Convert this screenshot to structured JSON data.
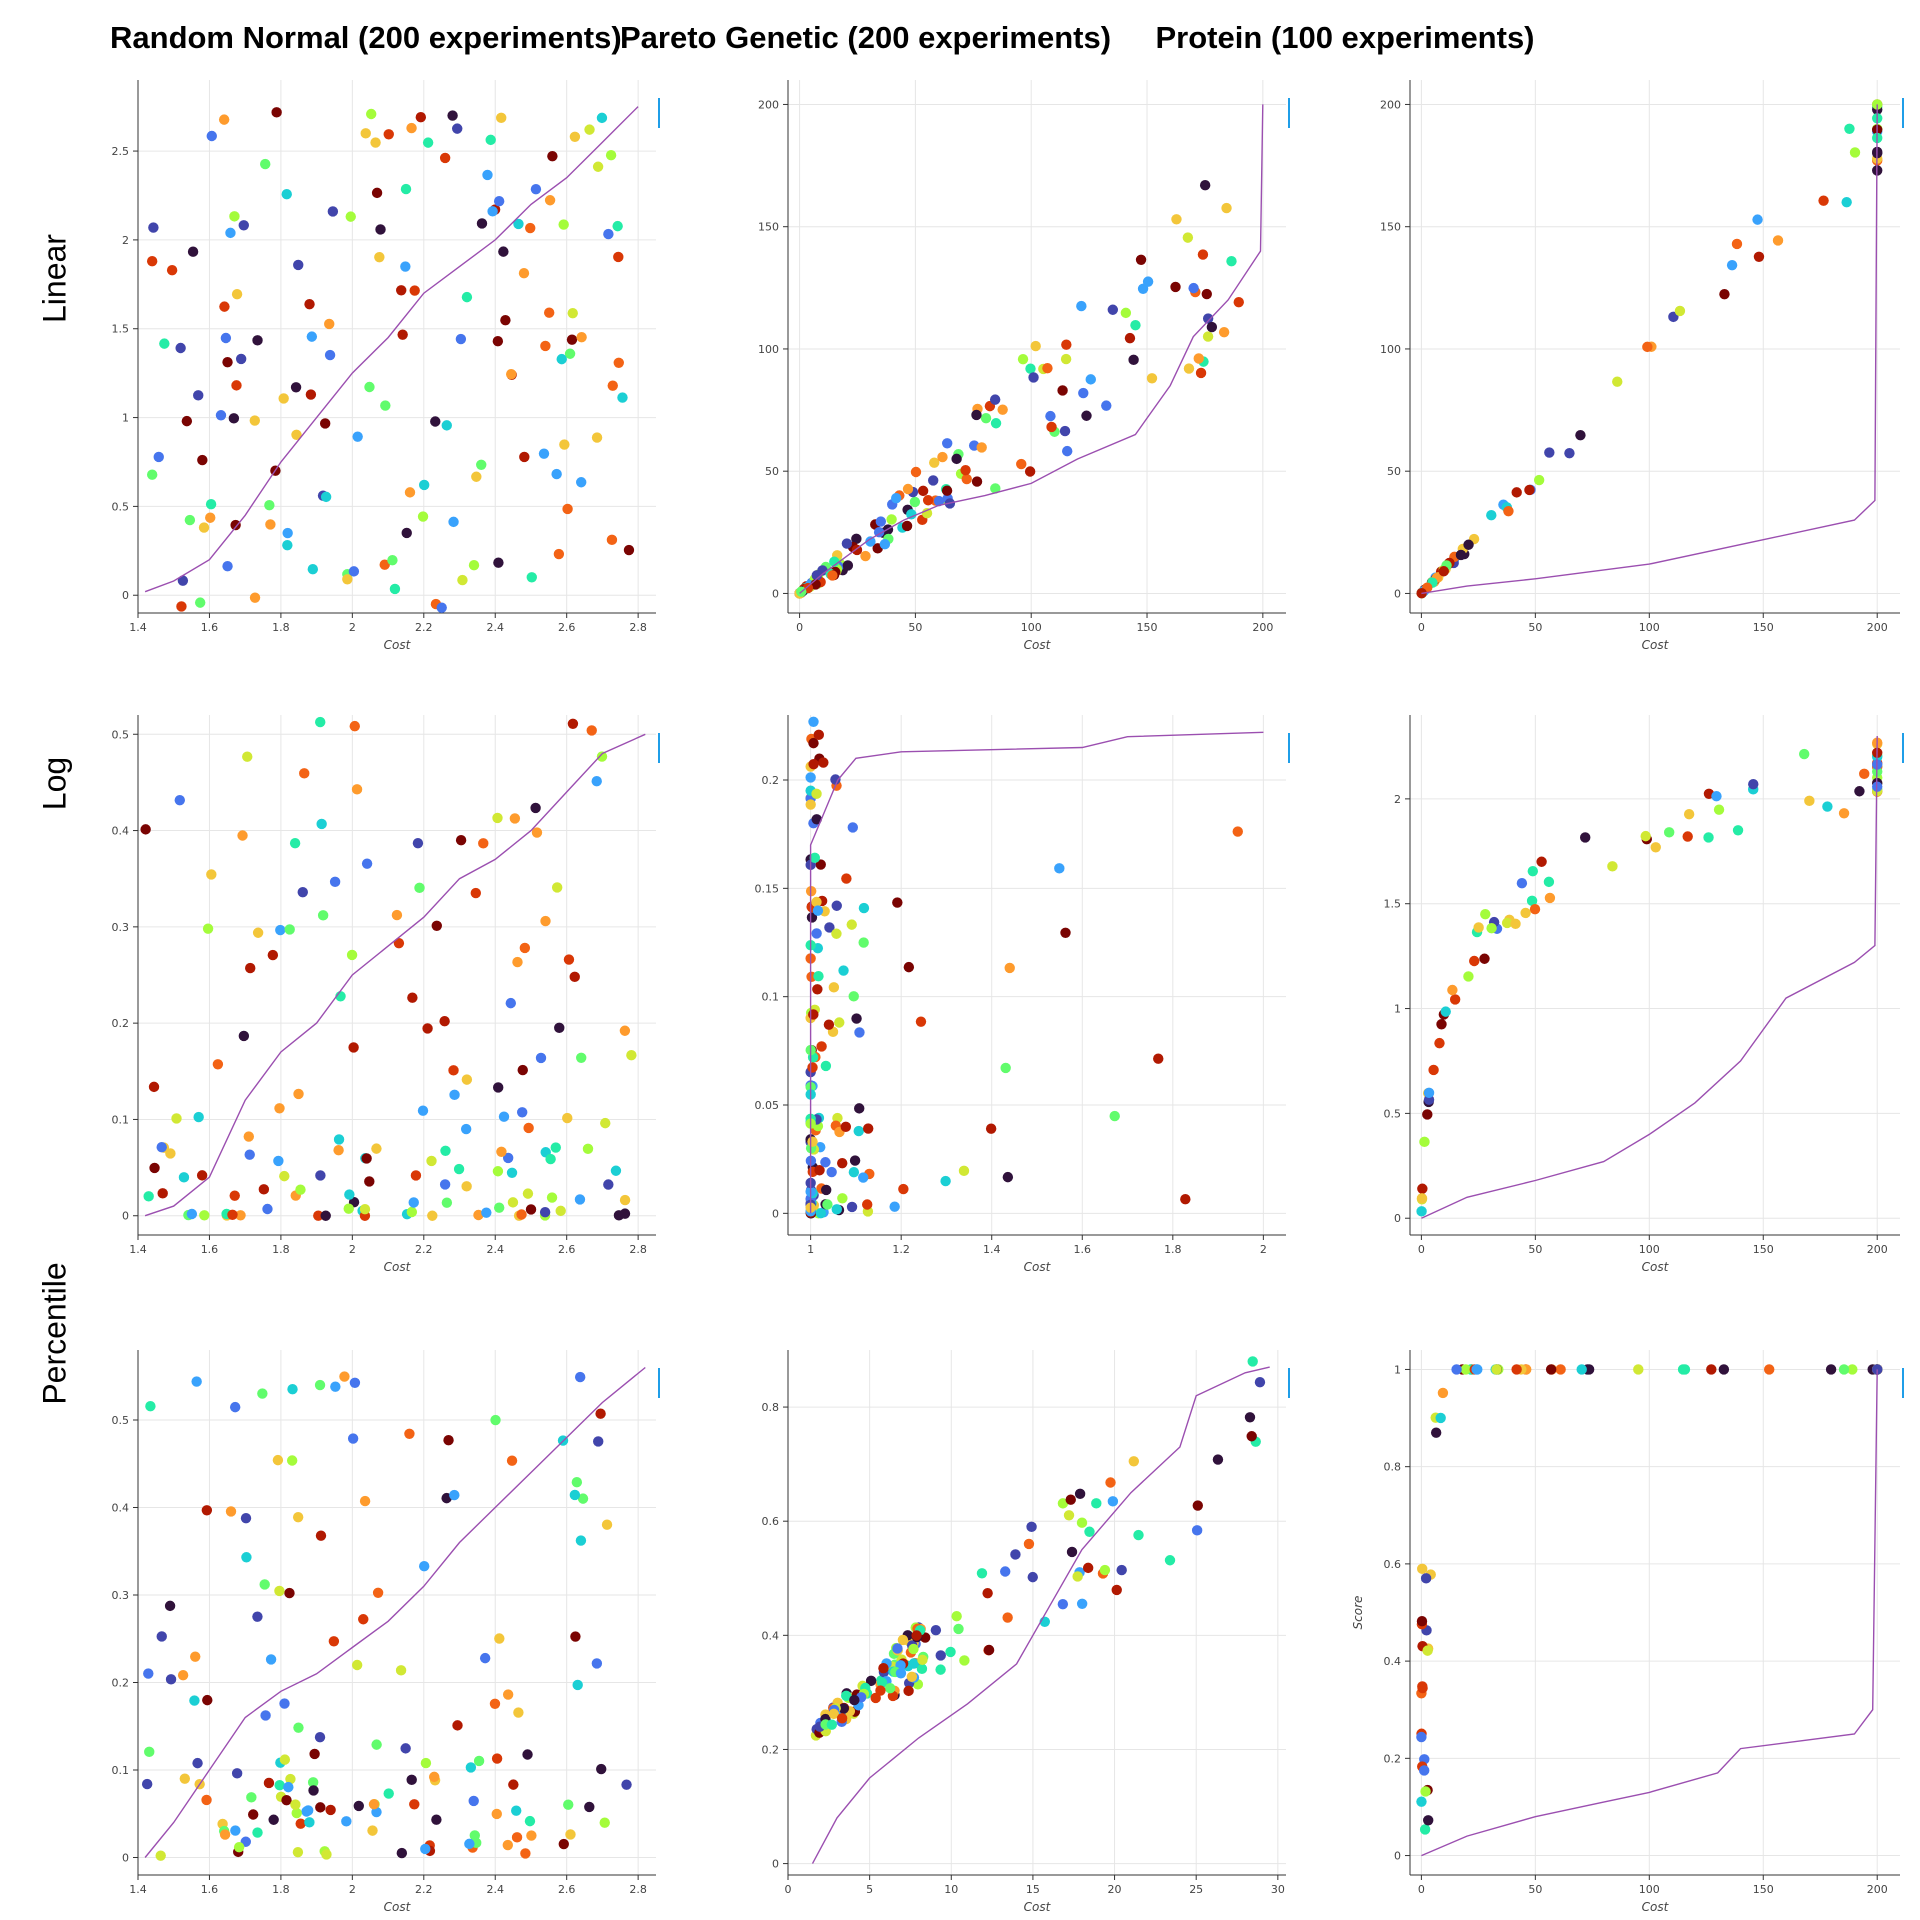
{
  "column_titles": [
    "Random Normal (200 experiments)",
    "Pareto Genetic (200 experiments)",
    "Protein (100 experiments)"
  ],
  "row_titles": [
    "Linear",
    "Log",
    "Percentile"
  ],
  "colors": {
    "frontier_line": "#9b4fb0",
    "accent_marker": "#1f9ee8",
    "grid": "#e6e6e6",
    "axis": "#333333"
  },
  "chart_data": [
    {
      "type": "scatter",
      "panel": "random-normal-linear",
      "xlabel": "Cost",
      "ylabel": "",
      "xlim": [
        1.4,
        2.85
      ],
      "ylim": [
        -0.1,
        2.9
      ],
      "xticks": [
        1.4,
        1.6,
        1.8,
        2,
        2.2,
        2.4,
        2.6,
        2.8
      ],
      "xticklabels": [
        "1.4",
        "1.6",
        "1.8",
        "2",
        "2.2",
        "2.4",
        "2.6",
        "2.8"
      ],
      "yticks": [
        0,
        0.5,
        1,
        1.5,
        2,
        2.5
      ],
      "yticklabels": [
        "0",
        "0.5",
        "1",
        "1.5",
        "2",
        "2.5"
      ],
      "grid": true,
      "point_count": 200,
      "x_distribution": "uniform-random",
      "y_distribution": "uniform-random",
      "frontier": [
        [
          1.42,
          0.02
        ],
        [
          1.5,
          0.08
        ],
        [
          1.6,
          0.2
        ],
        [
          1.7,
          0.45
        ],
        [
          1.8,
          0.75
        ],
        [
          1.9,
          1.0
        ],
        [
          2.0,
          1.25
        ],
        [
          2.1,
          1.45
        ],
        [
          2.2,
          1.7
        ],
        [
          2.3,
          1.85
        ],
        [
          2.4,
          2.0
        ],
        [
          2.5,
          2.2
        ],
        [
          2.6,
          2.35
        ],
        [
          2.7,
          2.55
        ],
        [
          2.8,
          2.75
        ]
      ]
    },
    {
      "type": "scatter",
      "panel": "pareto-genetic-linear",
      "xlabel": "Cost",
      "ylabel": "",
      "xlim": [
        -5,
        210
      ],
      "ylim": [
        -8,
        210
      ],
      "xticks": [
        0,
        50,
        100,
        150,
        200
      ],
      "xticklabels": [
        "0",
        "50",
        "100",
        "150",
        "200"
      ],
      "yticks": [
        0,
        50,
        100,
        150,
        200
      ],
      "yticklabels": [
        "0",
        "50",
        "100",
        "150",
        "200"
      ],
      "grid": true,
      "point_count": 200,
      "x_distribution": "pareto-heavy-low",
      "y_distribution": "correlated",
      "frontier": [
        [
          0,
          0
        ],
        [
          10,
          8
        ],
        [
          20,
          15
        ],
        [
          30,
          22
        ],
        [
          45,
          30
        ],
        [
          60,
          36
        ],
        [
          80,
          40
        ],
        [
          100,
          45
        ],
        [
          120,
          55
        ],
        [
          145,
          65
        ],
        [
          160,
          85
        ],
        [
          170,
          105
        ],
        [
          185,
          120
        ],
        [
          199,
          140
        ],
        [
          200,
          200
        ]
      ]
    },
    {
      "type": "scatter",
      "panel": "protein-linear",
      "xlabel": "Cost",
      "ylabel": "",
      "xlim": [
        -5,
        210
      ],
      "ylim": [
        -8,
        210
      ],
      "xticks": [
        0,
        50,
        100,
        150,
        200
      ],
      "xticklabels": [
        "0",
        "50",
        "100",
        "150",
        "200"
      ],
      "yticks": [
        0,
        50,
        100,
        150,
        200
      ],
      "yticklabels": [
        "0",
        "50",
        "100",
        "150",
        "200"
      ],
      "grid": true,
      "point_count": 100,
      "x_distribution": "cluster-low-and-at-200",
      "y_distribution": "diagonal",
      "frontier": [
        [
          0,
          0
        ],
        [
          20,
          3
        ],
        [
          50,
          6
        ],
        [
          100,
          12
        ],
        [
          150,
          22
        ],
        [
          190,
          30
        ],
        [
          199,
          38
        ],
        [
          200,
          200
        ]
      ]
    },
    {
      "type": "scatter",
      "panel": "random-normal-log",
      "xlabel": "Cost",
      "ylabel": "",
      "xlim": [
        1.4,
        2.85
      ],
      "ylim": [
        -0.02,
        0.52
      ],
      "xticks": [
        1.4,
        1.6,
        1.8,
        2,
        2.2,
        2.4,
        2.6,
        2.8
      ],
      "xticklabels": [
        "1.4",
        "1.6",
        "1.8",
        "2",
        "2.2",
        "2.4",
        "2.6",
        "2.8"
      ],
      "yticks": [
        0,
        0.1,
        0.2,
        0.3,
        0.4,
        0.5
      ],
      "yticklabels": [
        "0",
        "0.1",
        "0.2",
        "0.3",
        "0.4",
        "0.5"
      ],
      "grid": true,
      "point_count": 200,
      "x_distribution": "uniform-random",
      "y_distribution": "skew-low",
      "frontier": [
        [
          1.42,
          0.0
        ],
        [
          1.5,
          0.01
        ],
        [
          1.6,
          0.04
        ],
        [
          1.7,
          0.12
        ],
        [
          1.8,
          0.17
        ],
        [
          1.9,
          0.2
        ],
        [
          2.0,
          0.25
        ],
        [
          2.1,
          0.28
        ],
        [
          2.2,
          0.31
        ],
        [
          2.3,
          0.35
        ],
        [
          2.4,
          0.37
        ],
        [
          2.5,
          0.4
        ],
        [
          2.6,
          0.44
        ],
        [
          2.7,
          0.48
        ],
        [
          2.82,
          0.5
        ]
      ]
    },
    {
      "type": "scatter",
      "panel": "pareto-genetic-log",
      "xlabel": "Cost",
      "ylabel": "",
      "xlim": [
        0.95,
        2.05
      ],
      "ylim": [
        -0.01,
        0.23
      ],
      "xticks": [
        1,
        1.2,
        1.4,
        1.6,
        1.8,
        2
      ],
      "xticklabels": [
        "1",
        "1.2",
        "1.4",
        "1.6",
        "1.8",
        "2"
      ],
      "yticks": [
        0,
        0.05,
        0.1,
        0.15,
        0.2
      ],
      "yticklabels": [
        "0",
        "0.05",
        "0.1",
        "0.15",
        "0.2"
      ],
      "grid": true,
      "point_count": 200,
      "x_distribution": "cluster-near-1",
      "y_distribution": "skew-low",
      "frontier": [
        [
          1.0,
          0.0
        ],
        [
          1.0,
          0.17
        ],
        [
          1.03,
          0.185
        ],
        [
          1.06,
          0.2
        ],
        [
          1.1,
          0.21
        ],
        [
          1.2,
          0.213
        ],
        [
          1.6,
          0.215
        ],
        [
          1.7,
          0.22
        ],
        [
          2.0,
          0.222
        ]
      ]
    },
    {
      "type": "scatter",
      "panel": "protein-log",
      "xlabel": "Cost",
      "ylabel": "",
      "xlim": [
        -5,
        210
      ],
      "ylim": [
        -0.08,
        2.4
      ],
      "xticks": [
        0,
        50,
        100,
        150,
        200
      ],
      "xticklabels": [
        "0",
        "50",
        "100",
        "150",
        "200"
      ],
      "yticks": [
        0,
        0.5,
        1,
        1.5,
        2
      ],
      "yticklabels": [
        "0",
        "0.5",
        "1",
        "1.5",
        "2"
      ],
      "grid": true,
      "point_count": 100,
      "x_distribution": "cluster-low-and-at-200",
      "y_distribution": "log-curve",
      "frontier": [
        [
          0,
          0
        ],
        [
          20,
          0.1
        ],
        [
          50,
          0.18
        ],
        [
          80,
          0.27
        ],
        [
          100,
          0.4
        ],
        [
          120,
          0.55
        ],
        [
          140,
          0.75
        ],
        [
          160,
          1.05
        ],
        [
          190,
          1.22
        ],
        [
          199,
          1.3
        ],
        [
          200,
          2.3
        ]
      ]
    },
    {
      "type": "scatter",
      "panel": "random-normal-percentile",
      "xlabel": "Cost",
      "ylabel": "",
      "xlim": [
        1.4,
        2.85
      ],
      "ylim": [
        -0.02,
        0.58
      ],
      "xticks": [
        1.4,
        1.6,
        1.8,
        2,
        2.2,
        2.4,
        2.6,
        2.8
      ],
      "xticklabels": [
        "1.4",
        "1.6",
        "1.8",
        "2",
        "2.2",
        "2.4",
        "2.6",
        "2.8"
      ],
      "yticks": [
        0,
        0.1,
        0.2,
        0.3,
        0.4,
        0.5
      ],
      "yticklabels": [
        "0",
        "0.1",
        "0.2",
        "0.3",
        "0.4",
        "0.5"
      ],
      "grid": true,
      "point_count": 200,
      "x_distribution": "uniform-random",
      "y_distribution": "bimodal",
      "frontier": [
        [
          1.42,
          0.0
        ],
        [
          1.5,
          0.04
        ],
        [
          1.6,
          0.1
        ],
        [
          1.7,
          0.16
        ],
        [
          1.8,
          0.19
        ],
        [
          1.9,
          0.21
        ],
        [
          2.0,
          0.24
        ],
        [
          2.1,
          0.27
        ],
        [
          2.2,
          0.31
        ],
        [
          2.3,
          0.36
        ],
        [
          2.4,
          0.4
        ],
        [
          2.5,
          0.44
        ],
        [
          2.6,
          0.48
        ],
        [
          2.7,
          0.52
        ],
        [
          2.82,
          0.56
        ]
      ]
    },
    {
      "type": "scatter",
      "panel": "pareto-genetic-percentile",
      "xlabel": "Cost",
      "ylabel": "",
      "xlim": [
        0,
        30.5
      ],
      "ylim": [
        -0.02,
        0.9
      ],
      "xticks": [
        0,
        5,
        10,
        15,
        20,
        25,
        30
      ],
      "xticklabels": [
        "0",
        "5",
        "10",
        "15",
        "20",
        "25",
        "30"
      ],
      "yticks": [
        0,
        0.2,
        0.4,
        0.6,
        0.8
      ],
      "yticklabels": [
        "0",
        "0.2",
        "0.4",
        "0.6",
        "0.8"
      ],
      "grid": true,
      "point_count": 200,
      "x_distribution": "cluster-low",
      "y_distribution": "curved",
      "frontier": [
        [
          1.5,
          0.0
        ],
        [
          3,
          0.08
        ],
        [
          5,
          0.15
        ],
        [
          8,
          0.22
        ],
        [
          11,
          0.28
        ],
        [
          14,
          0.35
        ],
        [
          16,
          0.45
        ],
        [
          18,
          0.55
        ],
        [
          21,
          0.65
        ],
        [
          24,
          0.73
        ],
        [
          25,
          0.82
        ],
        [
          28,
          0.86
        ],
        [
          29.5,
          0.87
        ]
      ]
    },
    {
      "type": "scatter",
      "panel": "protein-percentile",
      "xlabel": "Cost",
      "ylabel": "Score",
      "xlim": [
        -5,
        210
      ],
      "ylim": [
        -0.04,
        1.04
      ],
      "xticks": [
        0,
        50,
        100,
        150,
        200
      ],
      "xticklabels": [
        "0",
        "50",
        "100",
        "150",
        "200"
      ],
      "yticks": [
        0,
        0.2,
        0.4,
        0.6,
        0.8,
        1
      ],
      "yticklabels": [
        "0",
        "0.2",
        "0.4",
        "0.6",
        "0.8",
        "1"
      ],
      "grid": true,
      "point_count": 100,
      "x_distribution": "cluster-low-and-at-200",
      "y_distribution": "percentile-curve",
      "frontier": [
        [
          0,
          0
        ],
        [
          20,
          0.04
        ],
        [
          50,
          0.08
        ],
        [
          80,
          0.11
        ],
        [
          100,
          0.13
        ],
        [
          130,
          0.17
        ],
        [
          140,
          0.22
        ],
        [
          190,
          0.25
        ],
        [
          198,
          0.3
        ],
        [
          200,
          1.0
        ]
      ]
    }
  ]
}
